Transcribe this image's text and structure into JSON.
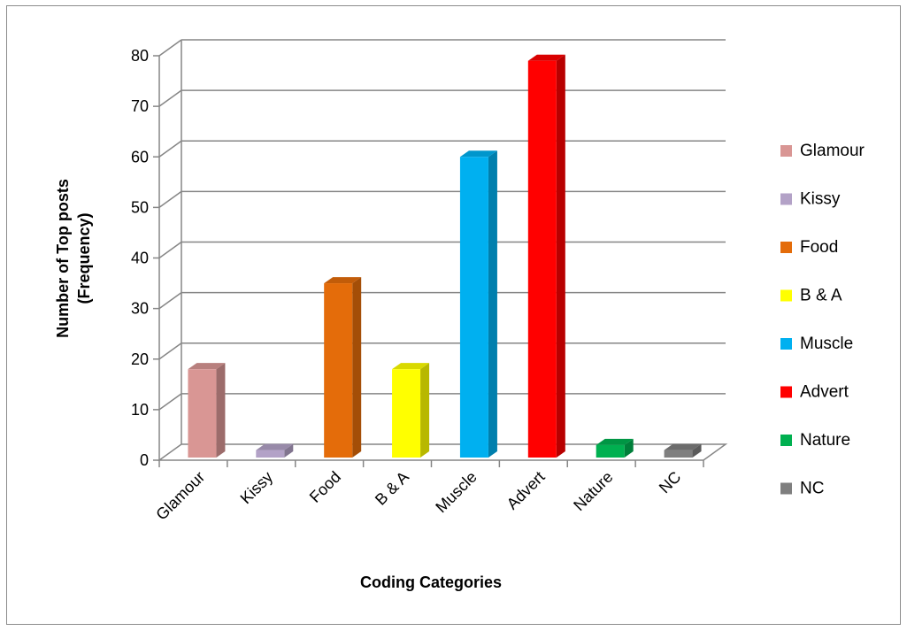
{
  "chart_data": {
    "type": "bar",
    "style": "3d-column",
    "categories": [
      "Glamour",
      "Kissy",
      "Food",
      "B & A",
      "Muscle",
      "Advert",
      "Nature",
      "NC"
    ],
    "values": [
      18,
      2,
      35,
      18,
      60,
      79,
      3,
      2
    ],
    "colors": [
      "#d99694",
      "#b3a2c7",
      "#e46c0a",
      "#ffff00",
      "#00b0f0",
      "#ff0000",
      "#00b050",
      "#7f7f7f"
    ],
    "xlabel": "Coding Categories",
    "ylabel_lines": [
      "Number of  Top posts",
      "(Frequency)"
    ],
    "ylim": [
      0,
      80
    ],
    "yticks": [
      "0",
      "10",
      "20",
      "30",
      "40",
      "50",
      "60",
      "70",
      "80"
    ],
    "grid": true,
    "legend_position": "right",
    "legend": [
      "Glamour",
      "Kissy",
      "Food",
      "B & A",
      "Muscle",
      "Advert",
      "Nature",
      "NC"
    ]
  }
}
